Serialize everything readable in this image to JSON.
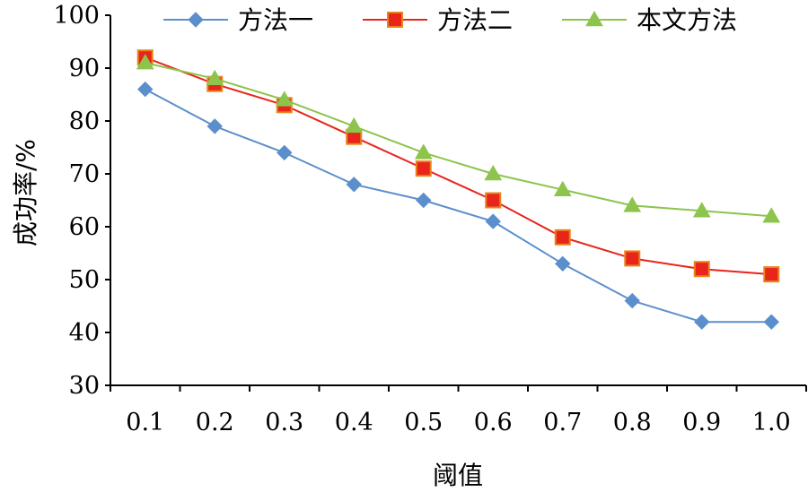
{
  "chart_data": {
    "type": "line",
    "title": "",
    "xlabel": "阈值",
    "ylabel": "成功率/%",
    "x": [
      "0.1",
      "0.2",
      "0.3",
      "0.4",
      "0.5",
      "0.6",
      "0.7",
      "0.8",
      "0.9",
      "1.0"
    ],
    "ylim": [
      30,
      100
    ],
    "yticks": [
      30,
      40,
      50,
      60,
      70,
      80,
      90,
      100
    ],
    "grid": false,
    "legend_position": "top",
    "series": [
      {
        "name": "方法一",
        "values": [
          86,
          79,
          74,
          68,
          65,
          61,
          53,
          46,
          42,
          42
        ],
        "color": "#5b8fcc",
        "marker": "diamond",
        "marker_fill": "#5b8fcc",
        "marker_edge": "#5b8fcc"
      },
      {
        "name": "方法二",
        "values": [
          92,
          87,
          83,
          77,
          71,
          65,
          58,
          54,
          52,
          51
        ],
        "color": "#e8241b",
        "marker": "square",
        "marker_fill": "#e8241b",
        "marker_edge": "#e8841b"
      },
      {
        "name": "本文方法",
        "values": [
          91,
          88,
          84,
          79,
          74,
          70,
          67,
          64,
          63,
          62
        ],
        "color": "#8cc44c",
        "marker": "triangle",
        "marker_fill": "#8cc44c",
        "marker_edge": "#8cc44c"
      }
    ]
  }
}
